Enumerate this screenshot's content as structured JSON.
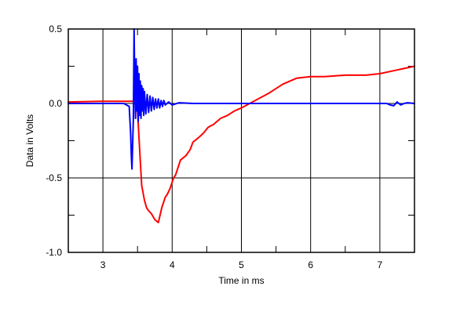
{
  "chart_data": {
    "type": "line",
    "title": "",
    "xlabel": "Time in ms",
    "ylabel": "Data in Volts",
    "xlim": [
      2.5,
      7.5
    ],
    "ylim": [
      -1.0,
      0.5
    ],
    "x_ticks": [
      3,
      4,
      5,
      6,
      7
    ],
    "x_tick_labels": [
      "3",
      "4",
      "5",
      "6",
      "7"
    ],
    "y_ticks": [
      -1.0,
      -0.5,
      0.0,
      0.5
    ],
    "y_tick_labels": [
      "-1.0",
      "-0.5",
      "0.0",
      "0.5"
    ],
    "grid": true,
    "legend": "none",
    "series": [
      {
        "color": "#ff0000",
        "x": [
          2.5,
          3.0,
          3.3,
          3.45,
          3.48,
          3.5,
          3.53,
          3.56,
          3.6,
          3.63,
          3.66,
          3.7,
          3.75,
          3.8,
          3.85,
          3.9,
          3.93,
          3.97,
          4.02,
          4.05,
          4.12,
          4.2,
          4.26,
          4.3,
          4.38,
          4.45,
          4.52,
          4.6,
          4.7,
          4.8,
          4.9,
          5.0,
          5.2,
          5.4,
          5.6,
          5.8,
          6.0,
          6.2,
          6.5,
          6.8,
          7.0,
          7.2,
          7.4,
          7.5
        ],
        "y": [
          0.01,
          0.015,
          0.015,
          0.015,
          0.01,
          -0.05,
          -0.3,
          -0.55,
          -0.65,
          -0.7,
          -0.72,
          -0.74,
          -0.78,
          -0.8,
          -0.7,
          -0.63,
          -0.61,
          -0.57,
          -0.5,
          -0.48,
          -0.38,
          -0.35,
          -0.31,
          -0.26,
          -0.23,
          -0.2,
          -0.16,
          -0.14,
          -0.1,
          -0.08,
          -0.05,
          -0.03,
          0.02,
          0.07,
          0.13,
          0.17,
          0.18,
          0.18,
          0.19,
          0.19,
          0.2,
          0.22,
          0.24,
          0.25
        ]
      },
      {
        "color": "#0000ff",
        "x": [
          2.5,
          3.0,
          3.3,
          3.38,
          3.4,
          3.41,
          3.42,
          3.44,
          3.45,
          3.46,
          3.47,
          3.48,
          3.49,
          3.5,
          3.51,
          3.52,
          3.53,
          3.54,
          3.55,
          3.56,
          3.57,
          3.58,
          3.59,
          3.6,
          3.62,
          3.64,
          3.66,
          3.68,
          3.7,
          3.72,
          3.74,
          3.76,
          3.78,
          3.8,
          3.82,
          3.84,
          3.86,
          3.88,
          3.9,
          3.95,
          4.0,
          4.1,
          4.3,
          4.6,
          5.0,
          5.5,
          6.0,
          6.5,
          7.0,
          7.1,
          7.15,
          7.2,
          7.25,
          7.3,
          7.35,
          7.4,
          7.5
        ],
        "y": [
          0.0,
          0.0,
          0.0,
          -0.02,
          -0.2,
          -0.35,
          -0.44,
          -0.1,
          0.5,
          0.1,
          -0.1,
          0.3,
          -0.05,
          0.25,
          -0.12,
          0.2,
          -0.08,
          0.15,
          -0.1,
          0.12,
          -0.05,
          0.1,
          -0.08,
          0.08,
          -0.07,
          0.06,
          -0.06,
          0.05,
          -0.05,
          0.04,
          -0.04,
          0.03,
          -0.03,
          0.03,
          -0.03,
          0.02,
          -0.02,
          0.02,
          -0.01,
          0.01,
          -0.01,
          0.005,
          0.0,
          0.0,
          0.0,
          0.0,
          0.0,
          0.0,
          0.0,
          0.0,
          -0.01,
          -0.015,
          0.01,
          -0.01,
          0.0,
          0.005,
          0.0
        ]
      }
    ]
  }
}
